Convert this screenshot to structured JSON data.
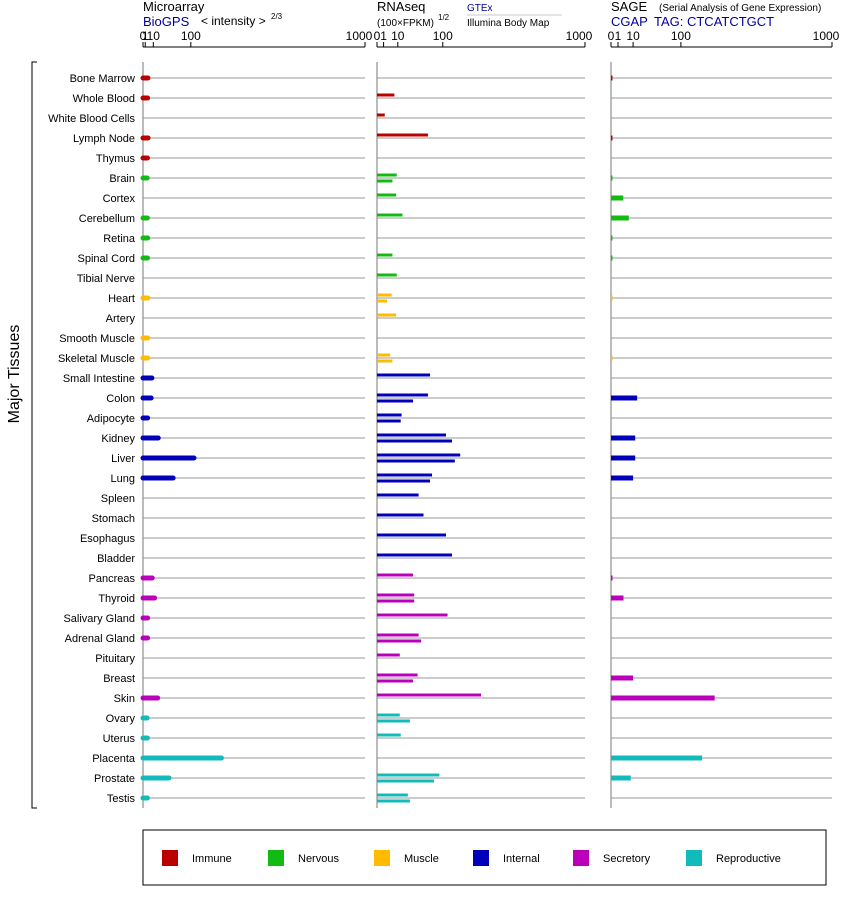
{
  "header": {
    "microarray_title": "Microarray",
    "microarray_source": "BioGPS",
    "microarray_unit": "< intensity >",
    "microarray_exp": "2/3",
    "rnaseq_title": "RNAseq",
    "rnaseq_unit": "(100×FPKM)",
    "rnaseq_exp": "1/2",
    "rnaseq_src1": "GTEx",
    "rnaseq_src2": "Illumina Body Map",
    "sage_title": "SAGE",
    "sage_subtitle": "(Serial Analysis of Gene Expression)",
    "sage_source": "CGAP",
    "sage_tag": "TAG: CTCATCTGCT"
  },
  "y_axis_label": "Major Tissues",
  "axis_ticks": [
    "0",
    "1",
    "10",
    "100",
    "1000"
  ],
  "colors": {
    "Immune": "#bb0000",
    "Nervous": "#11bb11",
    "Muscle": "#ffbb00",
    "Internal": "#0000bb",
    "Secretory": "#bb00bb",
    "Reproductive": "#11bbbb"
  },
  "legend": [
    "Immune",
    "Nervous",
    "Muscle",
    "Internal",
    "Secretory",
    "Reproductive"
  ],
  "chart_data": {
    "type": "bar",
    "orientation": "horizontal",
    "scale": "power",
    "xlim": [
      0,
      1000
    ],
    "tissues": [
      {
        "name": "Bone Marrow",
        "group": "Immune",
        "microarray": [
          3.3
        ],
        "rnaseq": [],
        "sage": [
          0.01
        ]
      },
      {
        "name": "Whole Blood",
        "group": "Immune",
        "microarray": [
          3.0
        ],
        "rnaseq": [
          7
        ],
        "sage": []
      },
      {
        "name": "White Blood Cells",
        "group": "Immune",
        "microarray": [],
        "rnaseq": [
          1.4
        ],
        "sage": []
      },
      {
        "name": "Lymph Node",
        "group": "Immune",
        "microarray": [
          3.4
        ],
        "rnaseq": [
          60
        ],
        "sage": [
          0.01
        ]
      },
      {
        "name": "Thymus",
        "group": "Immune",
        "microarray": [
          2.9
        ],
        "rnaseq": [],
        "sage": []
      },
      {
        "name": "Brain",
        "group": "Nervous",
        "microarray": [
          2.6
        ],
        "rnaseq": [
          9,
          5.5
        ],
        "sage": [
          0.01
        ]
      },
      {
        "name": "Cortex",
        "group": "Nervous",
        "microarray": [],
        "rnaseq": [
          8.5
        ],
        "sage": [
          3.1
        ]
      },
      {
        "name": "Cerebellum",
        "group": "Nervous",
        "microarray": [
          2.8
        ],
        "rnaseq": [
          15
        ],
        "sage": [
          6.5
        ]
      },
      {
        "name": "Retina",
        "group": "Nervous",
        "microarray": [
          3.1
        ],
        "rnaseq": [],
        "sage": [
          0.01
        ]
      },
      {
        "name": "Spinal Cord",
        "group": "Nervous",
        "microarray": [
          2.9
        ],
        "rnaseq": [
          5.5
        ],
        "sage": [
          0.01
        ]
      },
      {
        "name": "Tibial Nerve",
        "group": "Nervous",
        "microarray": [],
        "rnaseq": [
          9
        ],
        "sage": []
      },
      {
        "name": "Heart",
        "group": "Muscle",
        "microarray": [
          3.2
        ],
        "rnaseq": [
          5,
          2.3
        ],
        "sage": [
          0.01
        ]
      },
      {
        "name": "Artery",
        "group": "Muscle",
        "microarray": [],
        "rnaseq": [
          8.5
        ],
        "sage": []
      },
      {
        "name": "Smooth Muscle",
        "group": "Muscle",
        "microarray": [
          3.1
        ],
        "rnaseq": [],
        "sage": []
      },
      {
        "name": "Skeletal Muscle",
        "group": "Muscle",
        "microarray": [
          3.1
        ],
        "rnaseq": [
          4,
          5.5
        ],
        "sage": [
          0.01
        ]
      },
      {
        "name": "Small Intestine",
        "group": "Internal",
        "microarray": [
          8
        ],
        "rnaseq": [
          65
        ],
        "sage": []
      },
      {
        "name": "Colon",
        "group": "Internal",
        "microarray": [
          7
        ],
        "rnaseq": [
          60,
          30
        ],
        "sage": [
          14
        ]
      },
      {
        "name": "Adipocyte",
        "group": "Internal",
        "microarray": [
          3
        ],
        "rnaseq": [
          14,
          13
        ],
        "sage": []
      },
      {
        "name": "Kidney",
        "group": "Internal",
        "microarray": [
          18
        ],
        "rnaseq": [
          110,
          130
        ],
        "sage": [
          12
        ]
      },
      {
        "name": "Liver",
        "group": "Internal",
        "microarray": [
          110
        ],
        "rnaseq": [
          160,
          140
        ],
        "sage": [
          12
        ]
      },
      {
        "name": "Lung",
        "group": "Internal",
        "microarray": [
          50
        ],
        "rnaseq": [
          70,
          65
        ],
        "sage": [
          10
        ]
      },
      {
        "name": "Spleen",
        "group": "Internal",
        "microarray": [],
        "rnaseq": [
          40
        ],
        "sage": []
      },
      {
        "name": "Stomach",
        "group": "Internal",
        "microarray": [],
        "rnaseq": [
          50
        ],
        "sage": []
      },
      {
        "name": "Esophagus",
        "group": "Internal",
        "microarray": [],
        "rnaseq": [
          110
        ],
        "sage": []
      },
      {
        "name": "Bladder",
        "group": "Internal",
        "microarray": [],
        "rnaseq": [
          130
        ],
        "sage": []
      },
      {
        "name": "Pancreas",
        "group": "Secretory",
        "microarray": [
          8.5
        ],
        "rnaseq": [
          30
        ],
        "sage": [
          0.01
        ]
      },
      {
        "name": "Thyroid",
        "group": "Secretory",
        "microarray": [
          12
        ],
        "rnaseq": [
          32,
          32
        ],
        "sage": [
          3.2
        ]
      },
      {
        "name": "Salivary Gland",
        "group": "Secretory",
        "microarray": [
          3
        ],
        "rnaseq": [
          115
        ],
        "sage": []
      },
      {
        "name": "Adrenal Gland",
        "group": "Secretory",
        "microarray": [
          3
        ],
        "rnaseq": [
          40,
          45
        ],
        "sage": []
      },
      {
        "name": "Pituitary",
        "group": "Secretory",
        "microarray": [],
        "rnaseq": [
          12
        ],
        "sage": []
      },
      {
        "name": "Breast",
        "group": "Secretory",
        "microarray": [],
        "rnaseq": [
          38,
          30
        ],
        "sage": [
          10
        ]
      },
      {
        "name": "Skin",
        "group": "Secretory",
        "microarray": [
          17
        ],
        "rnaseq": [
          250
        ],
        "sage": [
          220
        ]
      },
      {
        "name": "Ovary",
        "group": "Reproductive",
        "microarray": [
          2.5
        ],
        "rnaseq": [
          12,
          25
        ],
        "sage": []
      },
      {
        "name": "Uterus",
        "group": "Reproductive",
        "microarray": [
          2.8
        ],
        "rnaseq": [
          13
        ],
        "sage": []
      },
      {
        "name": "Placenta",
        "group": "Reproductive",
        "microarray": [
          210
        ],
        "rnaseq": [],
        "sage": [
          170
        ]
      },
      {
        "name": "Prostate",
        "group": "Reproductive",
        "microarray": [
          40
        ],
        "rnaseq": [
          90,
          75
        ],
        "sage": [
          8
        ]
      },
      {
        "name": "Testis",
        "group": "Reproductive",
        "microarray": [
          2.8
        ],
        "rnaseq": [
          22,
          25
        ],
        "sage": []
      }
    ]
  }
}
